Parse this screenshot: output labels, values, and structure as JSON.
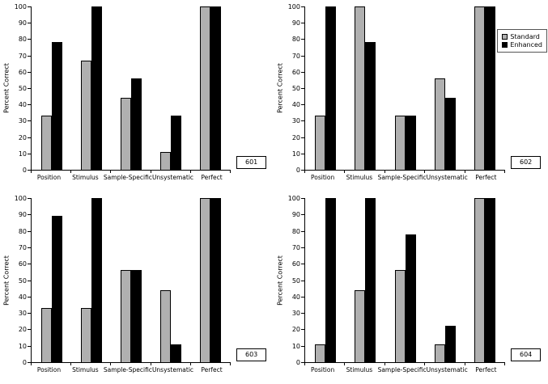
{
  "colors": {
    "standard": "#b0b0b0",
    "enhanced": "#000000",
    "axis": "#000000"
  },
  "legend": {
    "position": "top-right-of-panel-602",
    "items": [
      {
        "label": "Standard",
        "color": "#b0b0b0"
      },
      {
        "label": "Enhanced",
        "color": "#000000"
      }
    ]
  },
  "chart_data": [
    {
      "type": "bar",
      "panel_id": "601",
      "title": "",
      "xlabel": "",
      "ylabel": "Percent Correct",
      "ylim": [
        0,
        100
      ],
      "yticks": [
        0,
        10,
        20,
        30,
        40,
        50,
        60,
        70,
        80,
        90,
        100
      ],
      "grid": false,
      "legend": false,
      "categories": [
        "Position",
        "Stimulus",
        "Sample-Specific",
        "Unsystematic",
        "Perfect"
      ],
      "series": [
        {
          "name": "Standard",
          "values": [
            33,
            67,
            44,
            11,
            100
          ]
        },
        {
          "name": "Enhanced",
          "values": [
            78,
            100,
            56,
            33,
            100
          ]
        }
      ]
    },
    {
      "type": "bar",
      "panel_id": "602",
      "title": "",
      "xlabel": "",
      "ylabel": "Percent Correct",
      "ylim": [
        0,
        100
      ],
      "yticks": [
        0,
        10,
        20,
        30,
        40,
        50,
        60,
        70,
        80,
        90,
        100
      ],
      "grid": false,
      "legend": true,
      "categories": [
        "Position",
        "Stimulus",
        "Sample-Specific",
        "Unsystematic",
        "Perfect"
      ],
      "series": [
        {
          "name": "Standard",
          "values": [
            33,
            100,
            33,
            56,
            100
          ]
        },
        {
          "name": "Enhanced",
          "values": [
            100,
            78,
            33,
            44,
            100
          ]
        }
      ]
    },
    {
      "type": "bar",
      "panel_id": "603",
      "title": "",
      "xlabel": "",
      "ylabel": "Percent Correct",
      "ylim": [
        0,
        100
      ],
      "yticks": [
        0,
        10,
        20,
        30,
        40,
        50,
        60,
        70,
        80,
        90,
        100
      ],
      "grid": false,
      "legend": false,
      "categories": [
        "Position",
        "Stimulus",
        "Sample-Specific",
        "Unsystematic",
        "Perfect"
      ],
      "series": [
        {
          "name": "Standard",
          "values": [
            33,
            33,
            56,
            44,
            100
          ]
        },
        {
          "name": "Enhanced",
          "values": [
            89,
            100,
            56,
            11,
            100
          ]
        }
      ]
    },
    {
      "type": "bar",
      "panel_id": "604",
      "title": "",
      "xlabel": "",
      "ylabel": "Percent Correct",
      "ylim": [
        0,
        100
      ],
      "yticks": [
        0,
        10,
        20,
        30,
        40,
        50,
        60,
        70,
        80,
        90,
        100
      ],
      "grid": false,
      "legend": true,
      "categories": [
        "Position",
        "Stimulus",
        "Sample-Specific",
        "Unsystematic",
        "Perfect"
      ],
      "series": [
        {
          "name": "Standard",
          "values": [
            11,
            44,
            56,
            11,
            100
          ]
        },
        {
          "name": "Enhanced",
          "values": [
            100,
            100,
            78,
            22,
            100
          ]
        }
      ]
    }
  ]
}
